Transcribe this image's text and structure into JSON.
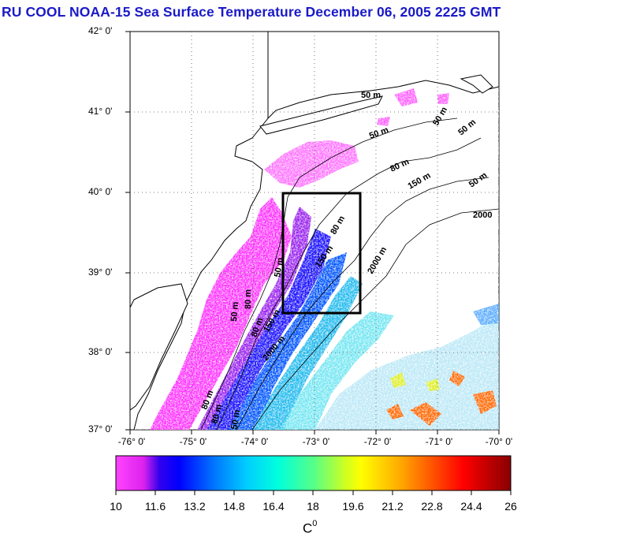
{
  "title": "RU COOL  NOAA-15 Sea Surface Temperature December 06, 2005 2225 GMT",
  "latitude_labels": [
    "42° 0'",
    "41° 0'",
    "40° 0'",
    "39° 0'",
    "38° 0'",
    "37° 0'"
  ],
  "longitude_labels": [
    "-76° 0'",
    "-75° 0'",
    "-74° 0'",
    "-73° 0'",
    "-72° 0'",
    "-71° 0'",
    "-70° 0'"
  ],
  "isobath_labels": [
    "50 m",
    "50 m",
    "50 m",
    "50 m",
    "80 m",
    "150 m",
    "50 m",
    "80 m",
    "150 m",
    "50 m",
    "80 m",
    "2000",
    "2000 m",
    "50 m",
    "80 m",
    "150 m",
    "2000 m",
    "80 m",
    "80 m",
    "50 m"
  ],
  "colorbar": {
    "labels": [
      "10",
      "11.6",
      "13.2",
      "14.8",
      "16.4",
      "18",
      "19.6",
      "21.2",
      "22.8",
      "24.4",
      "26"
    ],
    "unit": "C",
    "unit_superscript": "0",
    "colors": [
      "#ff33ff",
      "#cc22ee",
      "#0000ff",
      "#0066ff",
      "#00ccff",
      "#00ffcc",
      "#66ff66",
      "#ffff00",
      "#ff8800",
      "#ff0000",
      "#990000"
    ]
  }
}
